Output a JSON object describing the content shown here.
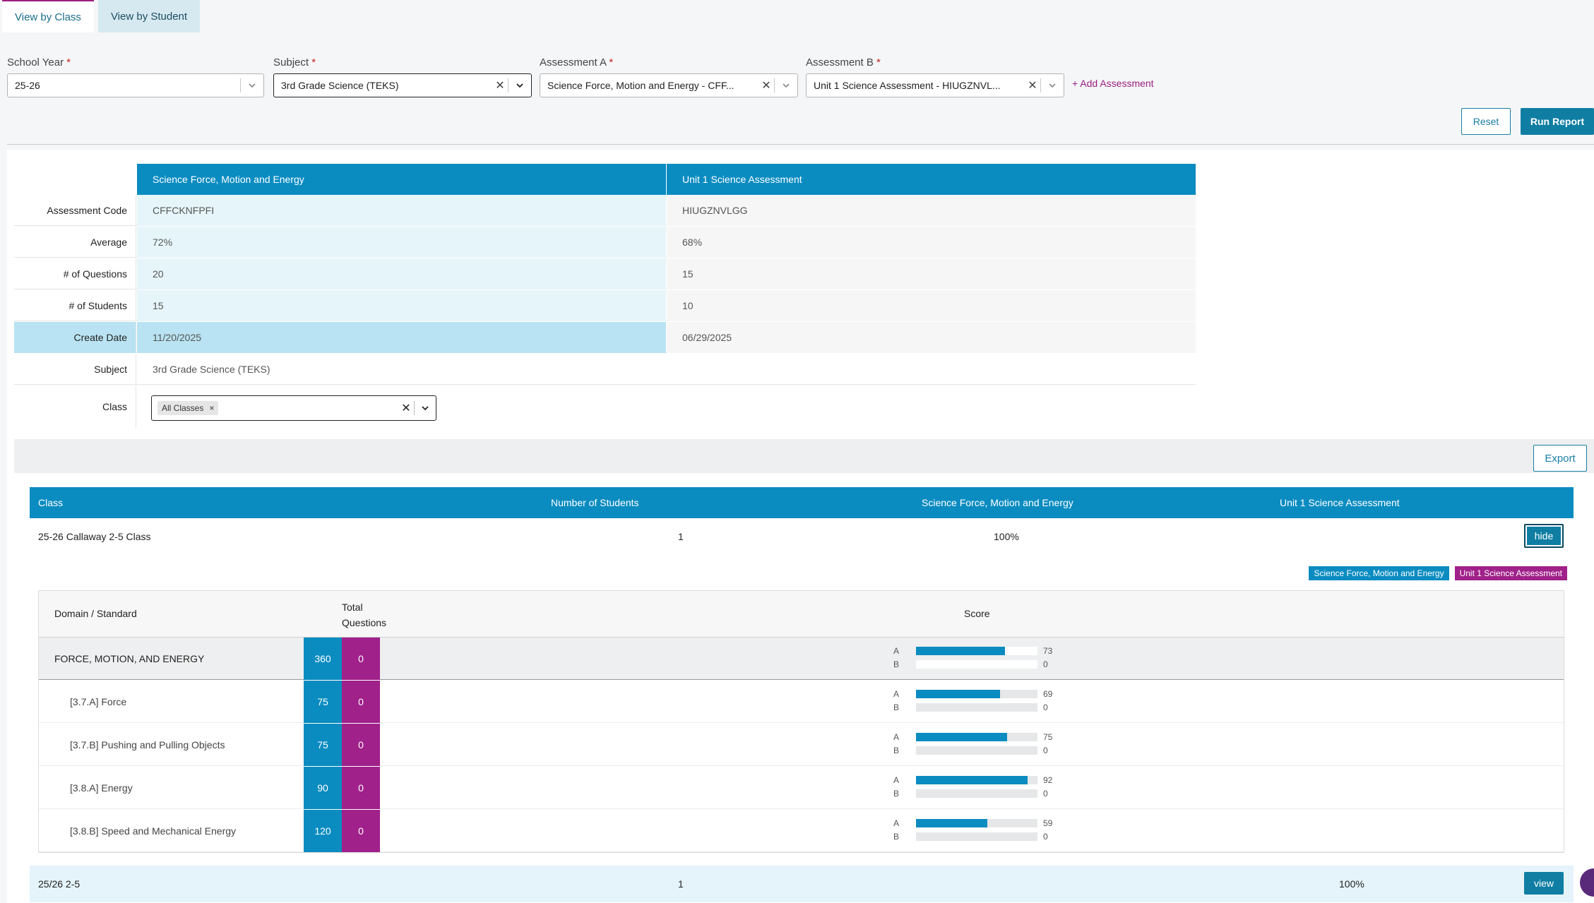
{
  "tabs": [
    {
      "label": "View by Class",
      "active": true
    },
    {
      "label": "View by Student",
      "active": false
    }
  ],
  "filters": {
    "school_year": {
      "label": "School Year",
      "value": "25-26"
    },
    "subject": {
      "label": "Subject",
      "value": "3rd Grade Science (TEKS)"
    },
    "assessment_a": {
      "label": "Assessment A",
      "value": "Science Force, Motion and Energy - CFF..."
    },
    "assessment_b": {
      "label": "Assessment B",
      "value": "Unit 1 Science Assessment - HIUGZNVL..."
    },
    "required_mark": "*",
    "add_assessment": "+ Add Assessment"
  },
  "actions": {
    "reset": "Reset",
    "run_report": "Run Report",
    "export": "Export"
  },
  "summary": {
    "col_a": "Science Force, Motion and Energy",
    "col_b": "Unit 1 Science Assessment",
    "rows": [
      {
        "label": "Assessment Code",
        "a": "CFFCKNFPFI",
        "b": "HIUGZNVLGG"
      },
      {
        "label": "Average",
        "a": "72%",
        "b": "68%"
      },
      {
        "label": "# of Questions",
        "a": "20",
        "b": "15"
      },
      {
        "label": "# of Students",
        "a": "15",
        "b": "10"
      },
      {
        "label": "Create Date",
        "a": "11/20/2025",
        "b": "06/29/2025"
      }
    ],
    "subject_label": "Subject",
    "subject_value": "3rd Grade Science (TEKS)",
    "class_label": "Class",
    "class_chip": "All Classes",
    "chip_remove": "×"
  },
  "class_table": {
    "headers": {
      "class": "Class",
      "students": "Number of Students",
      "a": "Science Force, Motion and Energy",
      "b": "Unit 1 Science Assessment"
    },
    "rows": [
      {
        "class": "25-26 Callaway 2-5 Class",
        "students": "1",
        "a": "100%",
        "b": "",
        "action": "hide"
      },
      {
        "class": "25/26 2-5",
        "students": "1",
        "a": "",
        "b": "100%",
        "action": "view"
      }
    ]
  },
  "legend": {
    "a": "Science Force, Motion and Energy",
    "b": "Unit 1 Science Assessment"
  },
  "detail": {
    "headers": {
      "domain": "Domain / Standard",
      "total_line1": "Total",
      "total_line2": "Questions",
      "score": "Score"
    },
    "series_labels": {
      "a": "A",
      "b": "B"
    },
    "rows": [
      {
        "name": "FORCE, MOTION, AND ENERGY",
        "group": true,
        "count_a": "360",
        "count_b": "0",
        "score_a": 73,
        "score_b": 0
      },
      {
        "name": "[3.7.A] Force",
        "group": false,
        "count_a": "75",
        "count_b": "0",
        "score_a": 69,
        "score_b": 0
      },
      {
        "name": "[3.7.B] Pushing and Pulling Objects",
        "group": false,
        "count_a": "75",
        "count_b": "0",
        "score_a": 75,
        "score_b": 0
      },
      {
        "name": "[3.8.A] Energy",
        "group": false,
        "count_a": "90",
        "count_b": "0",
        "score_a": 92,
        "score_b": 0
      },
      {
        "name": "[3.8.B] Speed and Mechanical Energy",
        "group": false,
        "count_a": "120",
        "count_b": "0",
        "score_a": 59,
        "score_b": 0
      }
    ]
  },
  "colors": {
    "primary": "#0b8cc1",
    "accent": "#a0218a",
    "highlight": "#b9e3f2"
  }
}
